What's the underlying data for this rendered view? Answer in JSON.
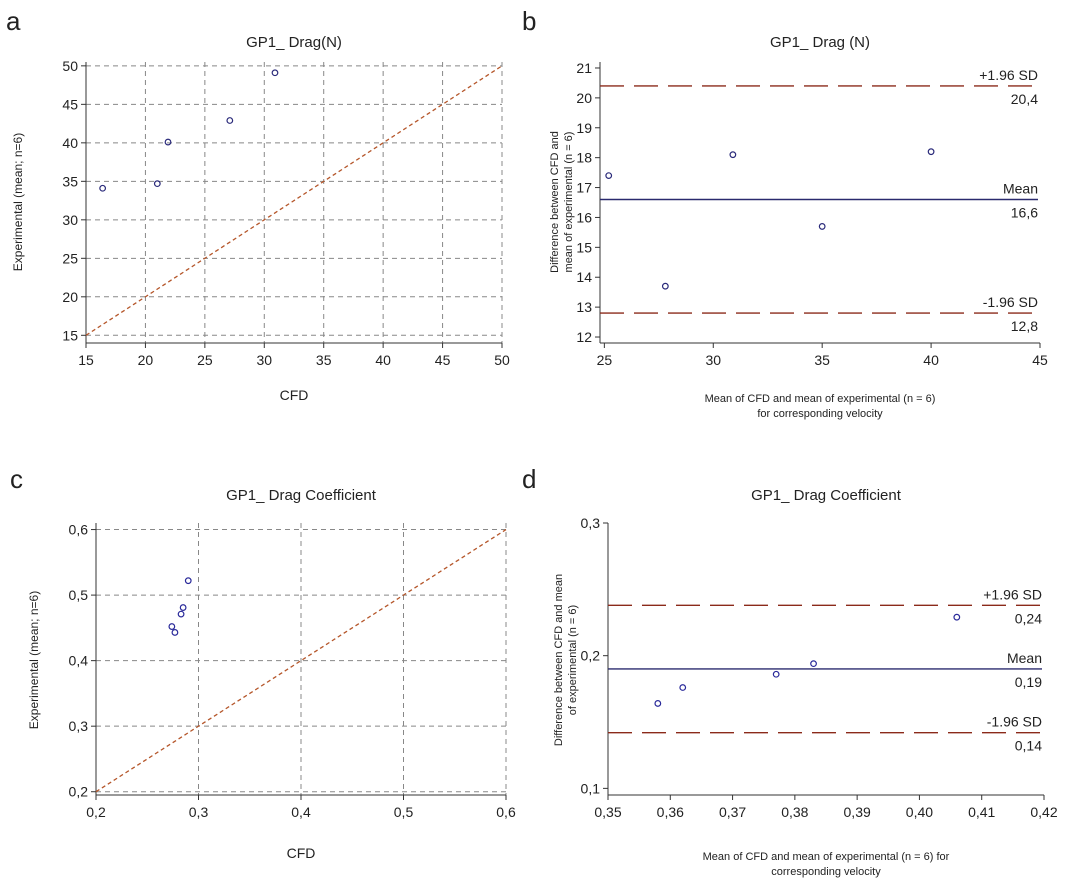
{
  "chart_data": [
    {
      "panel_label": "a",
      "type": "scatter",
      "title": "GP1_ Drag(N)",
      "xlabel": "CFD",
      "ylabel": "Experimental (mean; n=6)",
      "xlim": [
        15,
        50
      ],
      "ylim": [
        14,
        50.5
      ],
      "xticks": [
        "15",
        "20",
        "25",
        "30",
        "35",
        "40",
        "45",
        "50"
      ],
      "yticks": [
        "15",
        "20",
        "25",
        "30",
        "35",
        "40",
        "45",
        "50"
      ],
      "grid": true,
      "points": [
        [
          16.4,
          34.1
        ],
        [
          21.0,
          34.7
        ],
        [
          21.9,
          40.1
        ],
        [
          27.1,
          42.9
        ],
        [
          30.9,
          49.1
        ]
      ],
      "identity_line": [
        [
          15,
          15
        ],
        [
          50,
          50
        ]
      ],
      "colors": {
        "points": "#2a2a7a",
        "identity": "#b5562a",
        "grid": "#888888"
      }
    },
    {
      "panel_label": "b",
      "type": "scatter",
      "title": "GP1_ Drag (N)",
      "xlabel": "Mean of CFD and mean of experimental (n = 6)",
      "xlabel2": "for corresponding velocity",
      "ylabel": "Difference between CFD and",
      "ylabel2": "mean of experimental (n = 6)",
      "xlim": [
        24.8,
        45
      ],
      "ylim": [
        11.8,
        21.2
      ],
      "xticks": [
        "25",
        "30",
        "35",
        "40",
        "45"
      ],
      "yticks": [
        "12",
        "13",
        "14",
        "15",
        "16",
        "17",
        "18",
        "19",
        "20",
        "21"
      ],
      "grid": false,
      "points": [
        [
          25.2,
          17.4
        ],
        [
          27.8,
          13.7
        ],
        [
          30.9,
          18.1
        ],
        [
          35.0,
          15.7
        ],
        [
          40.0,
          18.2
        ]
      ],
      "hlines": [
        {
          "value": 20.4,
          "style": "dashed",
          "label_top": "+1.96 SD",
          "label_bottom": "20,4"
        },
        {
          "value": 16.6,
          "style": "solid",
          "label_top": "Mean",
          "label_bottom": "16,6"
        },
        {
          "value": 12.8,
          "style": "dashed",
          "label_top": "-1.96 SD",
          "label_bottom": "12,8"
        }
      ],
      "colors": {
        "points": "#2a2a7a",
        "mean": "#2a2a6e",
        "sd": "#8b2a1a"
      }
    },
    {
      "panel_label": "c",
      "type": "scatter",
      "title": "GP1_ Drag Coefficient",
      "xlabel": "CFD",
      "ylabel": "Experimental (mean; n=6)",
      "xlim": [
        0.2,
        0.6
      ],
      "ylim": [
        0.195,
        0.61
      ],
      "xticks": [
        "0,2",
        "0,3",
        "0,4",
        "0,5",
        "0,6"
      ],
      "yticks": [
        "0,2",
        "0,3",
        "0,4",
        "0,5",
        "0,6"
      ],
      "grid": true,
      "points": [
        [
          0.274,
          0.452
        ],
        [
          0.277,
          0.443
        ],
        [
          0.283,
          0.471
        ],
        [
          0.285,
          0.481
        ],
        [
          0.29,
          0.522
        ]
      ],
      "identity_line": [
        [
          0.2,
          0.2
        ],
        [
          0.6,
          0.6
        ]
      ],
      "colors": {
        "points": "#2a2a9a",
        "identity": "#b5562a",
        "grid": "#888888"
      }
    },
    {
      "panel_label": "d",
      "type": "scatter",
      "title": "GP1_ Drag Coefficient",
      "xlabel": "Mean of CFD and mean of experimental (n = 6) for",
      "xlabel2": "corresponding velocity",
      "ylabel": "Difference between CFD and mean",
      "ylabel2": "of experimental (n = 6)",
      "xlim": [
        0.35,
        0.42
      ],
      "ylim": [
        0.095,
        0.3
      ],
      "xticks": [
        "0,35",
        "0,36",
        "0,37",
        "0,38",
        "0,39",
        "0,40",
        "0,41",
        "0,42"
      ],
      "yticks": [
        "0,1",
        "0,2",
        "0,3"
      ],
      "grid": false,
      "points": [
        [
          0.358,
          0.164
        ],
        [
          0.362,
          0.176
        ],
        [
          0.377,
          0.186
        ],
        [
          0.383,
          0.194
        ],
        [
          0.406,
          0.229
        ]
      ],
      "hlines": [
        {
          "value": 0.238,
          "style": "dashed",
          "label_top": "+1.96 SD",
          "label_bottom": "0,24"
        },
        {
          "value": 0.19,
          "style": "solid",
          "label_top": "Mean",
          "label_bottom": "0,19"
        },
        {
          "value": 0.142,
          "style": "dashed",
          "label_top": "-1.96 SD",
          "label_bottom": "0,14"
        }
      ],
      "colors": {
        "points": "#2a2a9a",
        "mean": "#2a2a6e",
        "sd": "#8b2a1a"
      }
    }
  ]
}
